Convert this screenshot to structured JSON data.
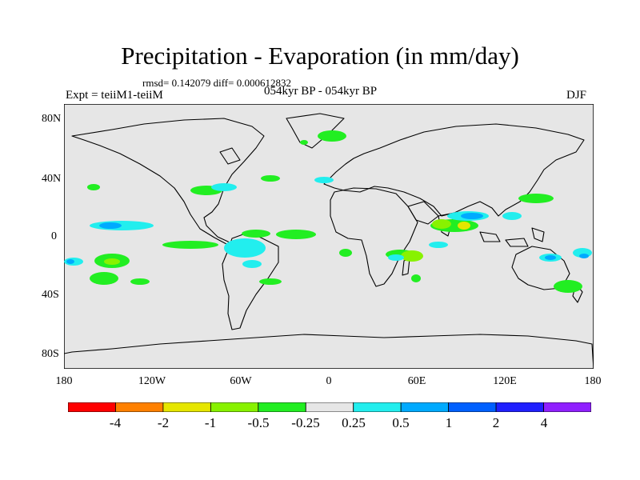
{
  "title": "Precipitation - Evaporation (in mm/day)",
  "stats": "rmsd= 0.142079  diff= 0.000612832",
  "experiment": "Expt = teiiM1-teiiM",
  "period": "054kyr BP - 054kyr BP",
  "season": "DJF",
  "lat_labels": [
    "80N",
    "40N",
    "0",
    "40S",
    "80S"
  ],
  "lon_labels": [
    "180",
    "120W",
    "60W",
    "0",
    "60E",
    "120E",
    "180"
  ],
  "colorbar": {
    "colors": [
      "#ff0000",
      "#ff8000",
      "#e6e600",
      "#88f200",
      "#22ee22",
      "#e6e6e6",
      "#22eeee",
      "#00aaff",
      "#0060ff",
      "#2020ff",
      "#9020ff"
    ],
    "labels": [
      "-4",
      "-2",
      "-1",
      "-0.5",
      "-0.25",
      "0.25",
      "0.5",
      "1",
      "2",
      "4"
    ]
  },
  "map_style": {
    "ocean_land_fill": "#e6e6e6",
    "coastline": "#000000"
  }
}
